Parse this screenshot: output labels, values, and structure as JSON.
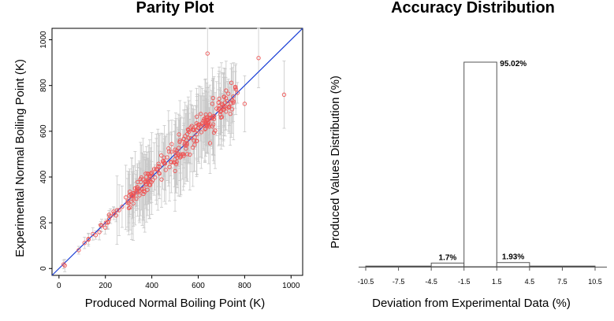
{
  "chart_data": [
    {
      "type": "scatter",
      "title": "Parity Plot",
      "xlabel": "Produced Normal Boiling Point (K)",
      "ylabel": "Experimental Normal Boiling Point (K)",
      "xlim": [
        -30,
        1050
      ],
      "ylim": [
        -30,
        1050
      ],
      "x_ticks": [
        "0",
        "200",
        "400",
        "600",
        "800",
        "1000"
      ],
      "y_ticks": [
        "0",
        "200",
        "400",
        "600",
        "800",
        "1000"
      ],
      "reference_line": "y = x",
      "colors": {
        "points": "#ee5555",
        "line": "#1a3fd6",
        "errorbars": "#c8c8c8"
      },
      "point_count": 520,
      "points_sample": [
        [
          20,
          18
        ],
        [
          85,
          80
        ],
        [
          110,
          112
        ],
        [
          180,
          190
        ],
        [
          250,
          255
        ],
        [
          320,
          318
        ],
        [
          400,
          420
        ],
        [
          450,
          470
        ],
        [
          500,
          520
        ],
        [
          550,
          560
        ],
        [
          600,
          615
        ],
        [
          640,
          650
        ],
        [
          700,
          720
        ],
        [
          760,
          790
        ],
        [
          800,
          720
        ],
        [
          860,
          920
        ],
        [
          970,
          760
        ],
        [
          640,
          940
        ]
      ]
    },
    {
      "type": "bar",
      "title": "Accuracy Distribution",
      "xlabel": "Deviation from Experimental Data (%)",
      "ylabel": "Produced Values Distribution (%)",
      "x_ticks": [
        "-10.5",
        "-7.5",
        "-4.5",
        "-1.5",
        "1.5",
        "4.5",
        "7.5",
        "10.5"
      ],
      "bins": [
        {
          "from": -10.5,
          "to": -4.5,
          "value": 0.3,
          "label": ""
        },
        {
          "from": -4.5,
          "to": -1.5,
          "value": 1.7,
          "label": "1.7%"
        },
        {
          "from": -1.5,
          "to": 1.5,
          "value": 95.02,
          "label": "95.02%"
        },
        {
          "from": 1.5,
          "to": 4.5,
          "value": 1.93,
          "label": "1.93%"
        },
        {
          "from": 4.5,
          "to": 10.5,
          "value": 0.3,
          "label": ""
        }
      ],
      "ylim": [
        0,
        100
      ]
    }
  ]
}
